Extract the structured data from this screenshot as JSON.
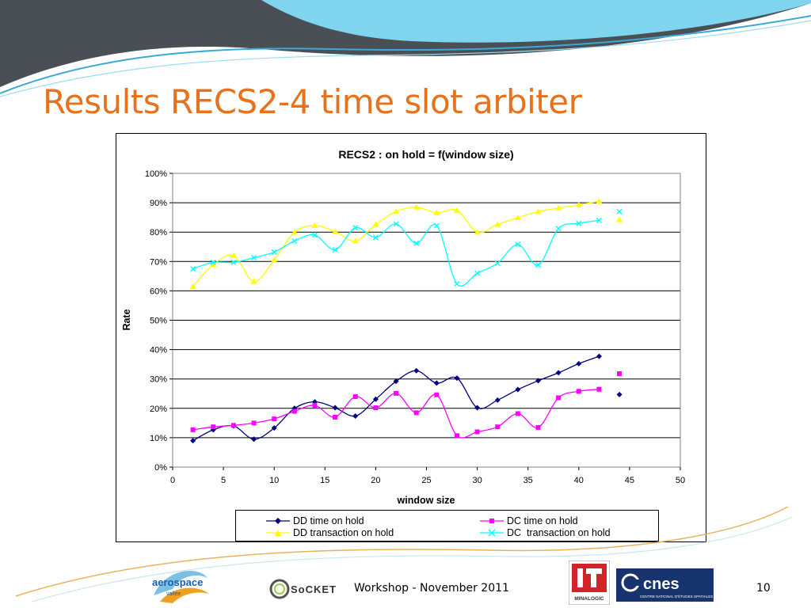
{
  "slide": {
    "title": "Results RECS2-4 time slot arbiter",
    "footer_text": "Workshop - November 2011",
    "page_number": "10"
  },
  "logos": {
    "aerospace": {
      "word": "aerospace",
      "tagline": "vallée"
    },
    "socket": {
      "text": "SoCKET"
    },
    "minalogic": {
      "text": "MINALOGIC"
    },
    "cnes": {
      "text": "cnes",
      "tagline": "CENTRE NATIONAL D'ÉTUDES SPATIALES"
    }
  },
  "colors": {
    "title": "#e8721c",
    "banner_dark": "#4a4f55",
    "banner_light": "#7fd4ee",
    "curve": "#3aa9d6"
  },
  "chart_data": {
    "type": "line",
    "title": "RECS2 : on hold = f(window size)",
    "xlabel": "window size",
    "ylabel": "Rate",
    "xlim": [
      0,
      50
    ],
    "ylim": [
      0,
      1
    ],
    "x_ticks": [
      "0",
      "5",
      "10",
      "15",
      "20",
      "25",
      "30",
      "35",
      "40",
      "45",
      "50"
    ],
    "y_ticks": [
      "0%",
      "10%",
      "20%",
      "30%",
      "40%",
      "50%",
      "60%",
      "70%",
      "80%",
      "90%",
      "100%"
    ],
    "grid": "horizontal major lines",
    "legend_position": "bottom",
    "x": [
      2,
      4,
      6,
      8,
      10,
      12,
      14,
      16,
      18,
      20,
      22,
      24,
      26,
      28,
      30,
      32,
      34,
      36,
      38,
      40,
      42,
      44
    ],
    "series": [
      {
        "name": "DD time on hold",
        "color": "#000080",
        "marker": "diamond",
        "values": [
          0.09,
          0.127,
          0.14,
          0.095,
          0.133,
          0.2,
          0.222,
          0.202,
          0.174,
          0.231,
          0.292,
          0.328,
          0.286,
          0.303,
          0.202,
          0.228,
          0.264,
          0.294,
          0.321,
          0.352,
          0.377,
          0.247
        ]
      },
      {
        "name": "DC time on hold",
        "color": "#ff00ff",
        "marker": "square",
        "values": [
          0.127,
          0.137,
          0.142,
          0.15,
          0.164,
          0.19,
          0.21,
          0.17,
          0.24,
          0.202,
          0.251,
          0.185,
          0.246,
          0.107,
          0.12,
          0.137,
          0.182,
          0.135,
          0.236,
          0.258,
          0.265,
          0.318
        ]
      },
      {
        "name": "DD transaction on hold",
        "color": "#ffff00",
        "marker": "triangle",
        "values": [
          0.615,
          0.69,
          0.72,
          0.632,
          0.705,
          0.8,
          0.822,
          0.802,
          0.77,
          0.826,
          0.87,
          0.885,
          0.866,
          0.874,
          0.8,
          0.826,
          0.849,
          0.87,
          0.882,
          0.893,
          0.905,
          0.842
        ]
      },
      {
        "name": "DC  transaction on hold",
        "color": "#00ffff",
        "marker": "x",
        "values": [
          0.675,
          0.697,
          0.697,
          0.713,
          0.732,
          0.77,
          0.79,
          0.74,
          0.815,
          0.782,
          0.828,
          0.762,
          0.822,
          0.624,
          0.66,
          0.694,
          0.758,
          0.688,
          0.812,
          0.83,
          0.84,
          0.87
        ]
      }
    ]
  }
}
